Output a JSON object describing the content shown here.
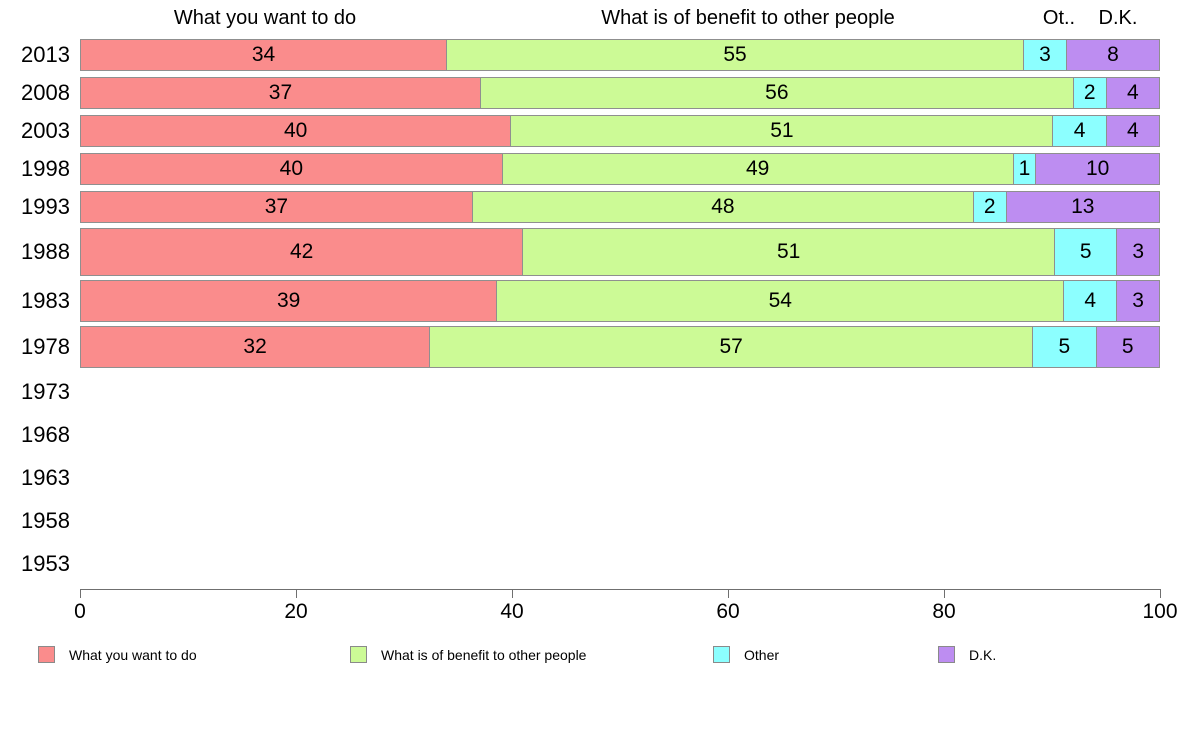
{
  "chart_data": {
    "type": "bar",
    "orientation": "horizontal",
    "stacked": true,
    "title": "",
    "column_headers": [
      "What you want to do",
      "What is of benefit to other people",
      "Ot..",
      "D.K."
    ],
    "categories": [
      "2013",
      "2008",
      "2003",
      "1998",
      "1993",
      "1988",
      "1983",
      "1978",
      "1973",
      "1968",
      "1963",
      "1958",
      "1953"
    ],
    "series": [
      {
        "name": "What you want to do",
        "color": "#FA8C8C",
        "values": [
          34,
          37,
          40,
          40,
          37,
          42,
          39,
          32,
          null,
          null,
          null,
          null,
          null
        ]
      },
      {
        "name": "What is of benefit to other people",
        "color": "#CCFA96",
        "values": [
          55,
          56,
          51,
          49,
          48,
          51,
          54,
          57,
          null,
          null,
          null,
          null,
          null
        ]
      },
      {
        "name": "Other",
        "color": "#8CFFFF",
        "values": [
          3,
          2,
          4,
          1,
          2,
          5,
          4,
          5,
          null,
          null,
          null,
          null,
          null
        ]
      },
      {
        "name": "D.K.",
        "color": "#BD8DF1",
        "values": [
          8,
          4,
          4,
          10,
          13,
          3,
          3,
          5,
          null,
          null,
          null,
          null,
          null
        ]
      }
    ],
    "x_axis": {
      "range": [
        0,
        100
      ],
      "ticks": [
        "0",
        "20",
        "40",
        "60",
        "80",
        "100"
      ]
    },
    "legend_items": [
      {
        "label": "What you want to do",
        "color": "#FA8C8C"
      },
      {
        "label": "What is of benefit to other people",
        "color": "#CCFA96"
      },
      {
        "label": "Other",
        "color": "#8CFFFF"
      },
      {
        "label": "D.K.",
        "color": "#BD8DF1"
      }
    ]
  }
}
